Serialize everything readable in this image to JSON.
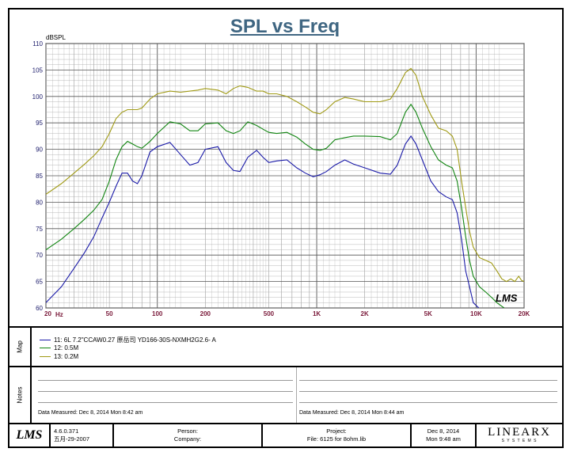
{
  "chart_data": {
    "type": "line",
    "title": "SPL vs Freq",
    "ylabel": "dBSPL",
    "xlabel": "Hz",
    "x_scale": "log",
    "xlim": [
      20,
      20000
    ],
    "ylim": [
      60,
      110
    ],
    "y_ticks": [
      "110",
      "105",
      "100",
      "95",
      "90",
      "85",
      "80",
      "75",
      "70",
      "65",
      "60"
    ],
    "x_ticks": [
      {
        "value": 20,
        "label": "20"
      },
      {
        "value": 50,
        "label": "50"
      },
      {
        "value": 100,
        "label": "100"
      },
      {
        "value": 200,
        "label": "200"
      },
      {
        "value": 500,
        "label": "500"
      },
      {
        "value": 1000,
        "label": "1K"
      },
      {
        "value": 2000,
        "label": "2K"
      },
      {
        "value": 5000,
        "label": "5K"
      },
      {
        "value": 10000,
        "label": "10K"
      },
      {
        "value": 20000,
        "label": "20K"
      }
    ],
    "grid": true,
    "series": [
      {
        "name": "11: 6L 7.2\"CCAW0.27 原岳司 YD166-30S-NXMH2G2.6- A",
        "color": "#1a1aa8",
        "points": [
          [
            20,
            61
          ],
          [
            25,
            64
          ],
          [
            30,
            67.5
          ],
          [
            35,
            70.5
          ],
          [
            40,
            73.5
          ],
          [
            45,
            77
          ],
          [
            50,
            80
          ],
          [
            55,
            83
          ],
          [
            60,
            85.5
          ],
          [
            65,
            85.5
          ],
          [
            70,
            84
          ],
          [
            75,
            83.5
          ],
          [
            80,
            85
          ],
          [
            90,
            89.5
          ],
          [
            100,
            90.5
          ],
          [
            120,
            91.3
          ],
          [
            140,
            89
          ],
          [
            160,
            87
          ],
          [
            180,
            87.5
          ],
          [
            200,
            90
          ],
          [
            240,
            90.5
          ],
          [
            270,
            87.5
          ],
          [
            300,
            86
          ],
          [
            330,
            85.8
          ],
          [
            370,
            88.5
          ],
          [
            420,
            89.8
          ],
          [
            460,
            88.5
          ],
          [
            500,
            87.5
          ],
          [
            560,
            87.8
          ],
          [
            650,
            88
          ],
          [
            750,
            86.5
          ],
          [
            850,
            85.5
          ],
          [
            950,
            84.8
          ],
          [
            1050,
            85.2
          ],
          [
            1150,
            85.8
          ],
          [
            1300,
            87
          ],
          [
            1500,
            88
          ],
          [
            1700,
            87.2
          ],
          [
            2000,
            86.5
          ],
          [
            2500,
            85.5
          ],
          [
            2900,
            85.3
          ],
          [
            3200,
            87
          ],
          [
            3600,
            91
          ],
          [
            3900,
            92.5
          ],
          [
            4200,
            91
          ],
          [
            4600,
            88
          ],
          [
            5200,
            84
          ],
          [
            5800,
            82
          ],
          [
            6500,
            81
          ],
          [
            7100,
            80.5
          ],
          [
            7600,
            78
          ],
          [
            8100,
            73
          ],
          [
            8600,
            67
          ],
          [
            9100,
            64
          ],
          [
            9600,
            61
          ],
          [
            10400,
            60
          ]
        ]
      },
      {
        "name": "12: 0.5M",
        "color": "#118511",
        "points": [
          [
            20,
            71
          ],
          [
            25,
            73
          ],
          [
            30,
            75
          ],
          [
            35,
            76.8
          ],
          [
            40,
            78.5
          ],
          [
            45,
            80.5
          ],
          [
            50,
            84
          ],
          [
            55,
            88
          ],
          [
            60,
            90.5
          ],
          [
            65,
            91.5
          ],
          [
            70,
            91
          ],
          [
            75,
            90.5
          ],
          [
            80,
            90.2
          ],
          [
            90,
            91.5
          ],
          [
            100,
            93
          ],
          [
            120,
            95.2
          ],
          [
            140,
            94.8
          ],
          [
            160,
            93.5
          ],
          [
            180,
            93.5
          ],
          [
            200,
            94.8
          ],
          [
            240,
            95
          ],
          [
            270,
            93.5
          ],
          [
            300,
            93
          ],
          [
            330,
            93.5
          ],
          [
            370,
            95.2
          ],
          [
            420,
            94.5
          ],
          [
            460,
            93.8
          ],
          [
            500,
            93.2
          ],
          [
            560,
            93
          ],
          [
            650,
            93.2
          ],
          [
            750,
            92.3
          ],
          [
            850,
            91
          ],
          [
            950,
            90
          ],
          [
            1050,
            89.8
          ],
          [
            1150,
            90.2
          ],
          [
            1300,
            91.8
          ],
          [
            1500,
            92.2
          ],
          [
            1700,
            92.5
          ],
          [
            2000,
            92.5
          ],
          [
            2500,
            92.4
          ],
          [
            2900,
            91.8
          ],
          [
            3200,
            93
          ],
          [
            3600,
            97
          ],
          [
            3900,
            98.5
          ],
          [
            4200,
            97
          ],
          [
            4600,
            94
          ],
          [
            5200,
            90.5
          ],
          [
            5800,
            88
          ],
          [
            6500,
            87
          ],
          [
            7100,
            86.5
          ],
          [
            7600,
            84
          ],
          [
            8100,
            79
          ],
          [
            8600,
            73.5
          ],
          [
            9100,
            69
          ],
          [
            9600,
            66
          ],
          [
            10500,
            64
          ],
          [
            11500,
            63
          ],
          [
            12500,
            62
          ],
          [
            13500,
            61
          ],
          [
            15000,
            60
          ]
        ]
      },
      {
        "name": "13: 0.2M",
        "color": "#a09a14",
        "points": [
          [
            20,
            81.5
          ],
          [
            25,
            83.5
          ],
          [
            30,
            85.5
          ],
          [
            35,
            87.2
          ],
          [
            40,
            88.8
          ],
          [
            45,
            90.5
          ],
          [
            50,
            93
          ],
          [
            55,
            95.8
          ],
          [
            60,
            97
          ],
          [
            65,
            97.5
          ],
          [
            70,
            97.5
          ],
          [
            75,
            97.5
          ],
          [
            80,
            97.8
          ],
          [
            90,
            99.5
          ],
          [
            100,
            100.5
          ],
          [
            120,
            101
          ],
          [
            140,
            100.8
          ],
          [
            160,
            101
          ],
          [
            180,
            101.2
          ],
          [
            200,
            101.5
          ],
          [
            240,
            101.2
          ],
          [
            270,
            100.5
          ],
          [
            300,
            101.5
          ],
          [
            330,
            102
          ],
          [
            370,
            101.7
          ],
          [
            420,
            101
          ],
          [
            460,
            101
          ],
          [
            500,
            100.5
          ],
          [
            560,
            100.5
          ],
          [
            650,
            100
          ],
          [
            750,
            99
          ],
          [
            850,
            98
          ],
          [
            950,
            97
          ],
          [
            1050,
            96.7
          ],
          [
            1150,
            97.5
          ],
          [
            1300,
            99
          ],
          [
            1500,
            99.8
          ],
          [
            1700,
            99.5
          ],
          [
            2000,
            99
          ],
          [
            2500,
            99
          ],
          [
            2900,
            99.5
          ],
          [
            3200,
            101.5
          ],
          [
            3600,
            104.5
          ],
          [
            3900,
            105.3
          ],
          [
            4200,
            104
          ],
          [
            4600,
            100
          ],
          [
            5200,
            96.5
          ],
          [
            5800,
            94
          ],
          [
            6500,
            93.5
          ],
          [
            7100,
            92.5
          ],
          [
            7600,
            90
          ],
          [
            8100,
            84
          ],
          [
            8600,
            79
          ],
          [
            9100,
            74.5
          ],
          [
            9600,
            71.5
          ],
          [
            10500,
            69.5
          ],
          [
            11500,
            69
          ],
          [
            12500,
            68.5
          ],
          [
            13500,
            67
          ],
          [
            14500,
            65.5
          ],
          [
            15500,
            65
          ],
          [
            16500,
            65.5
          ],
          [
            17500,
            65
          ],
          [
            18500,
            66
          ],
          [
            19300,
            65.2
          ],
          [
            20000,
            65
          ]
        ]
      }
    ]
  },
  "watermark_logo": "LMS",
  "map_panel": {
    "label": "Map",
    "legend": [
      {
        "text": "11: 6L 7.2\"CCAW0.27 原岳司 YD166-30S-NXMH2G2.6- A",
        "color": "#1a1aa8"
      },
      {
        "text": "12: 0.5M",
        "color": "#118511"
      },
      {
        "text": "13: 0.2M",
        "color": "#a09a14"
      }
    ]
  },
  "notes_panel": {
    "label": "Notes",
    "measured_left": "Data Measured:  Dec  8, 2014  Mon  8:42 am",
    "measured_right": "Data Measured:  Dec  8, 2014  Mon  8:44 am"
  },
  "footer": {
    "logo": "LMS",
    "version": "4.6.0.371",
    "version_date": "五月-29-2007",
    "person_label": "Person:",
    "company_label": "Company:",
    "project_label": "Project:",
    "file_label": "File: 6125 for 8ohm.lib",
    "date_line1": "Dec  8, 2014",
    "date_line2": "Mon  9:48 am",
    "brand": "LINEARX",
    "brand_sub": "S Y S T E M S"
  }
}
